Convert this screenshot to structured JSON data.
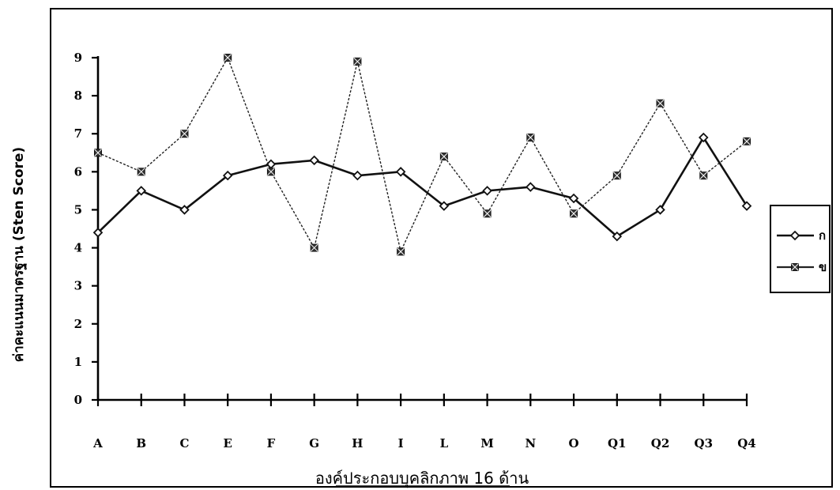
{
  "chart_data": {
    "type": "line",
    "title": "",
    "xlabel": "องค์ประกอบบุคลิกภาพ  16 ด้าน",
    "ylabel": "ค่าคะแนนมาตรฐาน (Sten Score)",
    "categories": [
      "A",
      "B",
      "C",
      "E",
      "F",
      "G",
      "H",
      "I",
      "L",
      "M",
      "N",
      "O",
      "Q1",
      "Q2",
      "Q3",
      "Q4"
    ],
    "yticks": [
      "0",
      "1",
      "2",
      "3",
      "4",
      "5",
      "6",
      "7",
      "8",
      "9"
    ],
    "ylim": [
      0,
      9
    ],
    "grid": false,
    "legend_position": "right",
    "series": [
      {
        "name": "ก",
        "marker": "diamond",
        "values": [
          4.4,
          5.5,
          5.0,
          5.9,
          6.2,
          6.3,
          5.9,
          6.0,
          5.1,
          5.5,
          5.6,
          5.3,
          4.3,
          5.0,
          6.9,
          5.1
        ]
      },
      {
        "name": "ข",
        "marker": "square-cross",
        "values": [
          6.5,
          6.0,
          7.0,
          9.0,
          6.0,
          4.0,
          8.9,
          3.9,
          6.4,
          4.9,
          6.9,
          4.9,
          5.9,
          7.8,
          5.9,
          6.8
        ]
      }
    ]
  }
}
